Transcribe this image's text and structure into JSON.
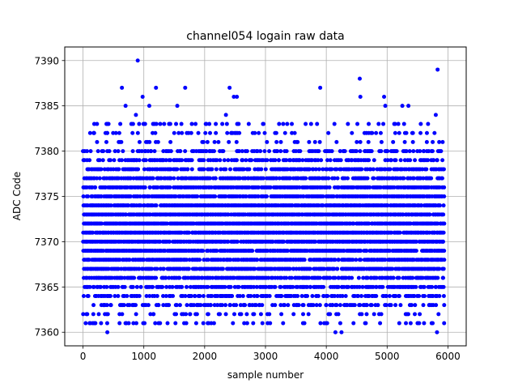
{
  "chart_data": {
    "type": "scatter",
    "title": "channel054 logain raw data",
    "xlabel": "sample number",
    "ylabel": "ADC Code",
    "xlim": [
      -300,
      6300
    ],
    "ylim": [
      7358.5,
      7391.5
    ],
    "x_ticks": [
      0,
      1000,
      2000,
      3000,
      4000,
      5000,
      6000
    ],
    "y_ticks": [
      7360,
      7365,
      7370,
      7375,
      7380,
      7385,
      7390
    ],
    "grid": true,
    "marker": "circle",
    "color": "#0000ff",
    "series": [
      {
        "n_samples": 5930,
        "dense_band": [
          7363,
          7380
        ],
        "points": [
          {
            "x": 0,
            "y": 7380
          },
          {
            "x": 120,
            "y": 7361
          },
          {
            "x": 170,
            "y": 7362
          },
          {
            "x": 180,
            "y": 7382
          },
          {
            "x": 230,
            "y": 7383
          },
          {
            "x": 400,
            "y": 7360
          },
          {
            "x": 420,
            "y": 7383
          },
          {
            "x": 640,
            "y": 7387
          },
          {
            "x": 700,
            "y": 7385
          },
          {
            "x": 870,
            "y": 7384
          },
          {
            "x": 900,
            "y": 7390
          },
          {
            "x": 980,
            "y": 7386
          },
          {
            "x": 1090,
            "y": 7385
          },
          {
            "x": 1200,
            "y": 7387
          },
          {
            "x": 1390,
            "y": 7361
          },
          {
            "x": 1520,
            "y": 7361
          },
          {
            "x": 1550,
            "y": 7385
          },
          {
            "x": 1680,
            "y": 7387
          },
          {
            "x": 2050,
            "y": 7361
          },
          {
            "x": 2350,
            "y": 7384
          },
          {
            "x": 2410,
            "y": 7387
          },
          {
            "x": 2480,
            "y": 7386
          },
          {
            "x": 2530,
            "y": 7386
          },
          {
            "x": 2650,
            "y": 7361
          },
          {
            "x": 2950,
            "y": 7361
          },
          {
            "x": 3640,
            "y": 7361
          },
          {
            "x": 3900,
            "y": 7387
          },
          {
            "x": 4150,
            "y": 7360
          },
          {
            "x": 4250,
            "y": 7360
          },
          {
            "x": 4550,
            "y": 7388
          },
          {
            "x": 4560,
            "y": 7386
          },
          {
            "x": 4950,
            "y": 7386
          },
          {
            "x": 4970,
            "y": 7385
          },
          {
            "x": 5200,
            "y": 7361
          },
          {
            "x": 5250,
            "y": 7385
          },
          {
            "x": 5350,
            "y": 7385
          },
          {
            "x": 5500,
            "y": 7361
          },
          {
            "x": 5820,
            "y": 7360
          },
          {
            "x": 5830,
            "y": 7389
          },
          {
            "x": 5800,
            "y": 7384
          }
        ]
      }
    ]
  }
}
